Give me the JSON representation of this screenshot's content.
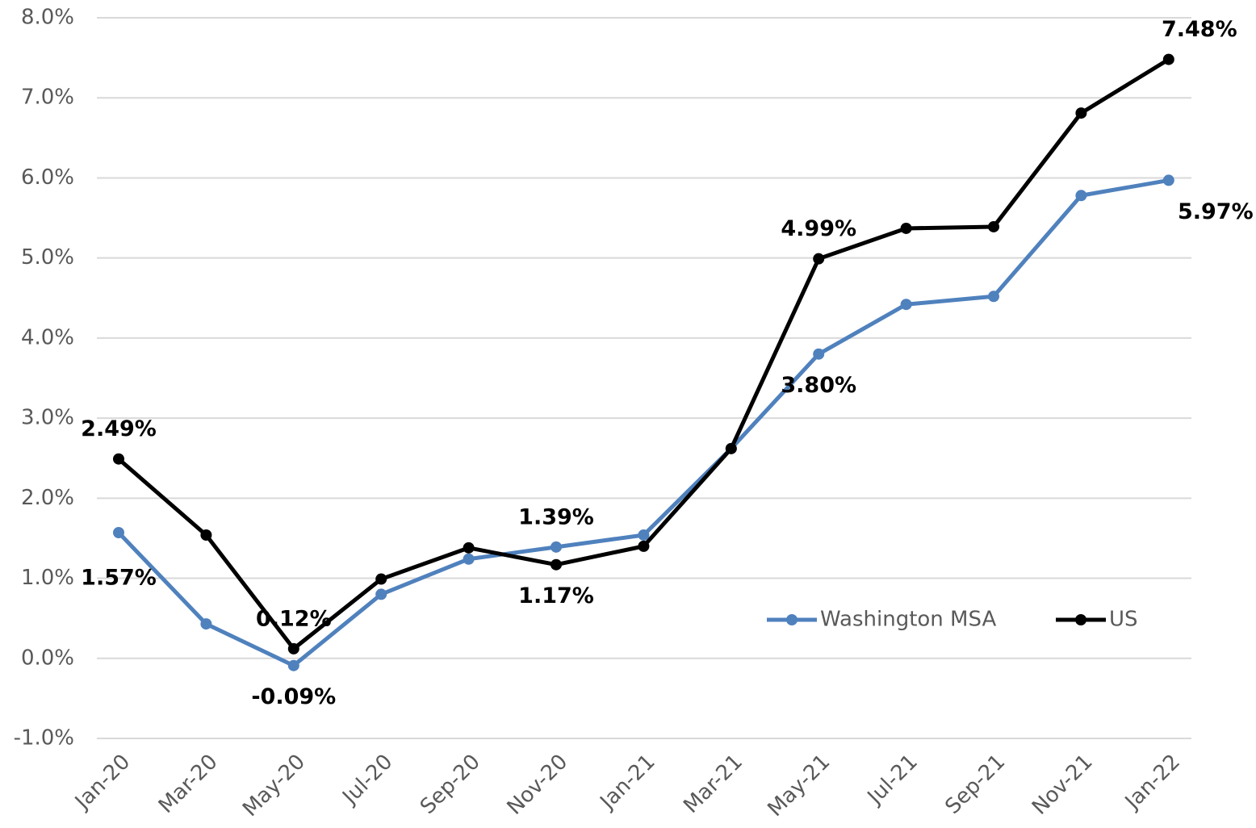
{
  "chart_data": {
    "type": "line",
    "categories": [
      "Jan-20",
      "Mar-20",
      "May-20",
      "Jul-20",
      "Sep-20",
      "Nov-20",
      "Jan-21",
      "Mar-21",
      "May-21",
      "Jul-21",
      "Sep-21",
      "Nov-21",
      "Jan-22"
    ],
    "series": [
      {
        "name": "Washington MSA",
        "color": "#4f81bd",
        "values": [
          1.57,
          0.43,
          -0.09,
          0.8,
          1.24,
          1.39,
          1.54,
          2.62,
          3.8,
          4.42,
          4.52,
          5.78,
          5.97
        ],
        "value_labels": [
          "1.57%",
          null,
          "-0.09%",
          null,
          null,
          "1.39%",
          null,
          null,
          "3.80%",
          null,
          null,
          null,
          "5.97%"
        ]
      },
      {
        "name": "US",
        "color": "#000000",
        "values": [
          2.49,
          1.54,
          0.12,
          0.99,
          1.38,
          1.17,
          1.4,
          2.62,
          4.99,
          5.37,
          5.39,
          6.81,
          7.48
        ],
        "value_labels": [
          "2.49%",
          null,
          "0.12%",
          null,
          null,
          "1.17%",
          null,
          null,
          "4.99%",
          null,
          null,
          null,
          "7.48%"
        ]
      }
    ],
    "ylim": [
      -1,
      8
    ],
    "yticks": [
      {
        "value": -1,
        "label": "-1.0%"
      },
      {
        "value": 0,
        "label": "0.0%"
      },
      {
        "value": 1,
        "label": "1.0%"
      },
      {
        "value": 2,
        "label": "2.0%"
      },
      {
        "value": 3,
        "label": "3.0%"
      },
      {
        "value": 4,
        "label": "4.0%"
      },
      {
        "value": 5,
        "label": "5.0%"
      },
      {
        "value": 6,
        "label": "6.0%"
      },
      {
        "value": 7,
        "label": "7.0%"
      },
      {
        "value": 8,
        "label": "8.0%"
      }
    ],
    "grid": true
  }
}
